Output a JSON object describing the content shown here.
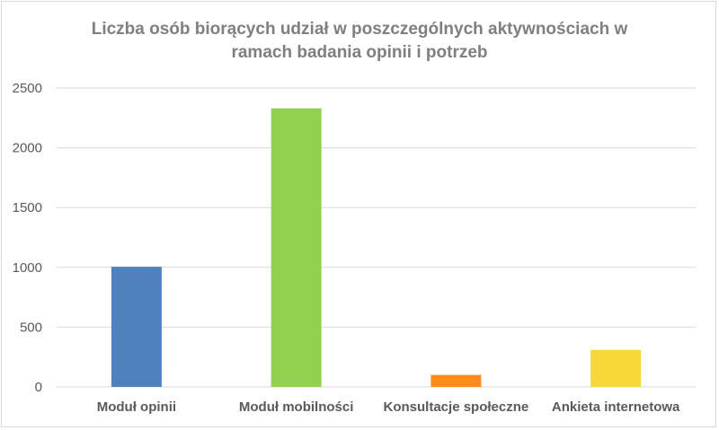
{
  "chart_data": {
    "type": "bar",
    "title_line1": "Liczba osób biorących udział w poszczególnych aktywnościach w",
    "title_line2": "ramach badania opinii i potrzeb",
    "categories": [
      "Moduł opinii",
      "Moduł mobilności",
      "Konsultacje społeczne",
      "Ankieta internetowa"
    ],
    "values": [
      1005,
      2330,
      100,
      310
    ],
    "colors": [
      "#4f81bd",
      "#92d050",
      "#ff8c1a",
      "#f7d838"
    ],
    "yticks": [
      "0",
      "500",
      "1000",
      "1500",
      "2000",
      "2500"
    ],
    "ylim": [
      0,
      2500
    ],
    "grid": true,
    "xlabel": "",
    "ylabel": ""
  }
}
